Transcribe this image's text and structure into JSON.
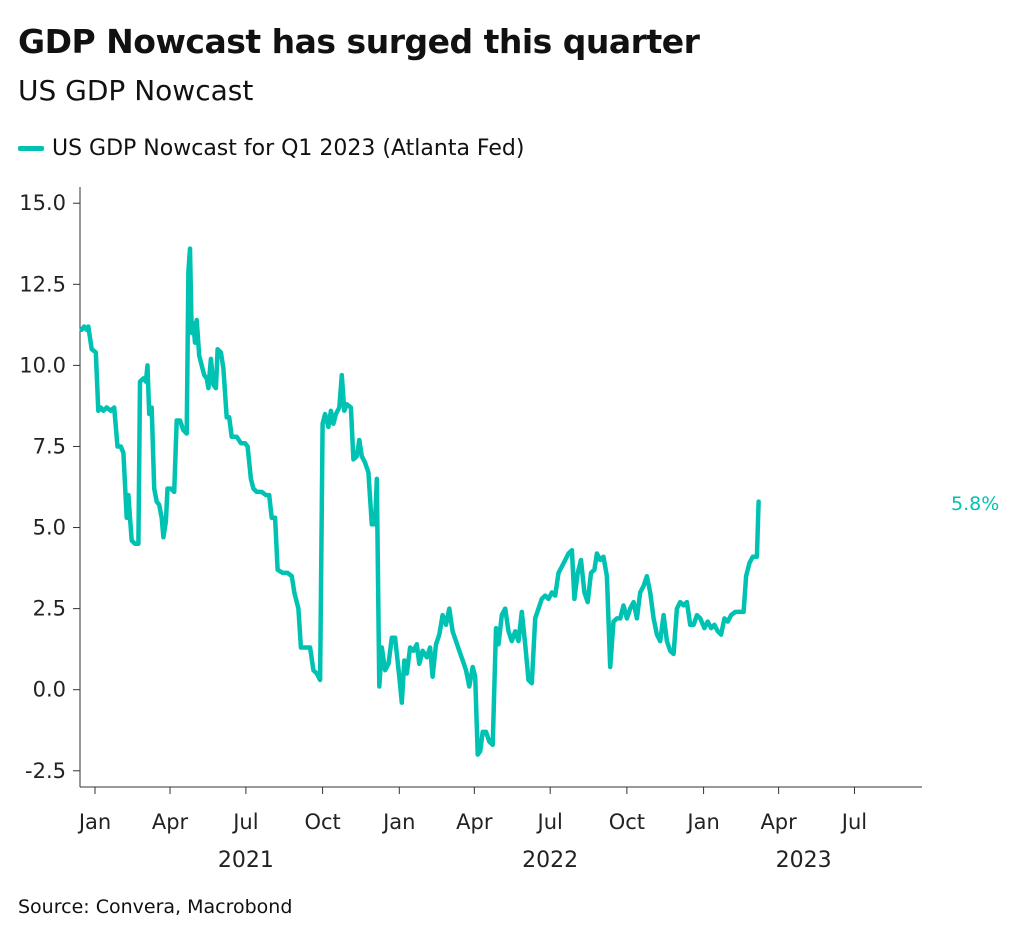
{
  "chart_data": {
    "type": "line",
    "title": "GDP Nowcast has surged this quarter",
    "subtitle": "US GDP Nowcast",
    "xlabel": "",
    "ylabel": "",
    "ylim": [
      -3,
      15.5
    ],
    "xlim": [
      "2020-12-14",
      "2023-09-20"
    ],
    "yticks": [
      "-2.5",
      "0.0",
      "2.5",
      "5.0",
      "7.5",
      "10.0",
      "12.5",
      "15.0"
    ],
    "month_ticks": [
      {
        "date": "2021-01-01",
        "label": "Jan"
      },
      {
        "date": "2021-04-01",
        "label": "Apr"
      },
      {
        "date": "2021-07-01",
        "label": "Jul"
      },
      {
        "date": "2021-10-01",
        "label": "Oct"
      },
      {
        "date": "2022-01-01",
        "label": "Jan"
      },
      {
        "date": "2022-04-01",
        "label": "Apr"
      },
      {
        "date": "2022-07-01",
        "label": "Jul"
      },
      {
        "date": "2022-10-01",
        "label": "Oct"
      },
      {
        "date": "2023-01-01",
        "label": "Jan"
      },
      {
        "date": "2023-04-01",
        "label": "Apr"
      },
      {
        "date": "2023-07-01",
        "label": "Jul"
      }
    ],
    "year_labels": [
      {
        "date": "2021-07-01",
        "label": "2021"
      },
      {
        "date": "2022-07-01",
        "label": "2022"
      },
      {
        "date": "2023-05-01",
        "label": "2023"
      }
    ],
    "grid": false,
    "legend_position": "top-left",
    "end_label": "5.8%",
    "series": [
      {
        "name": "US GDP Nowcast for Q1 2023 (Atlanta Fed)",
        "color": "#00C2B2",
        "points": [
          [
            "2020-12-16",
            11.1
          ],
          [
            "2020-12-19",
            11.2
          ],
          [
            "2020-12-22",
            11.1
          ],
          [
            "2020-12-24",
            11.2
          ],
          [
            "2020-12-28",
            10.5
          ],
          [
            "2021-01-02",
            10.4
          ],
          [
            "2021-01-05",
            8.6
          ],
          [
            "2021-01-08",
            8.7
          ],
          [
            "2021-01-11",
            8.6
          ],
          [
            "2021-01-15",
            8.7
          ],
          [
            "2021-01-20",
            8.6
          ],
          [
            "2021-01-24",
            8.7
          ],
          [
            "2021-01-28",
            7.5
          ],
          [
            "2021-02-01",
            7.5
          ],
          [
            "2021-02-04",
            7.3
          ],
          [
            "2021-02-08",
            5.3
          ],
          [
            "2021-02-10",
            6.0
          ],
          [
            "2021-02-12",
            5.3
          ],
          [
            "2021-02-14",
            4.6
          ],
          [
            "2021-02-18",
            4.5
          ],
          [
            "2021-02-22",
            4.5
          ],
          [
            "2021-02-24",
            9.5
          ],
          [
            "2021-02-28",
            9.6
          ],
          [
            "2021-03-03",
            9.5
          ],
          [
            "2021-03-05",
            10.0
          ],
          [
            "2021-03-07",
            8.5
          ],
          [
            "2021-03-10",
            8.7
          ],
          [
            "2021-03-13",
            6.2
          ],
          [
            "2021-03-16",
            5.8
          ],
          [
            "2021-03-19",
            5.7
          ],
          [
            "2021-03-22",
            5.3
          ],
          [
            "2021-03-24",
            4.7
          ],
          [
            "2021-03-27",
            5.2
          ],
          [
            "2021-03-29",
            6.2
          ],
          [
            "2021-04-02",
            6.2
          ],
          [
            "2021-04-06",
            6.1
          ],
          [
            "2021-04-09",
            8.3
          ],
          [
            "2021-04-13",
            8.3
          ],
          [
            "2021-04-17",
            8.0
          ],
          [
            "2021-04-21",
            7.9
          ],
          [
            "2021-04-23",
            12.9
          ],
          [
            "2021-04-25",
            13.6
          ],
          [
            "2021-04-27",
            11.0
          ],
          [
            "2021-04-29",
            11.3
          ],
          [
            "2021-05-01",
            10.7
          ],
          [
            "2021-05-03",
            11.4
          ],
          [
            "2021-05-06",
            10.3
          ],
          [
            "2021-05-09",
            10.0
          ],
          [
            "2021-05-12",
            9.7
          ],
          [
            "2021-05-15",
            9.6
          ],
          [
            "2021-05-17",
            9.3
          ],
          [
            "2021-05-20",
            10.2
          ],
          [
            "2021-05-23",
            9.4
          ],
          [
            "2021-05-26",
            9.3
          ],
          [
            "2021-05-28",
            10.5
          ],
          [
            "2021-06-01",
            10.4
          ],
          [
            "2021-06-04",
            9.9
          ],
          [
            "2021-06-08",
            8.4
          ],
          [
            "2021-06-11",
            8.4
          ],
          [
            "2021-06-14",
            7.8
          ],
          [
            "2021-06-20",
            7.8
          ],
          [
            "2021-06-25",
            7.6
          ],
          [
            "2021-06-30",
            7.6
          ],
          [
            "2021-07-03",
            7.5
          ],
          [
            "2021-07-07",
            6.5
          ],
          [
            "2021-07-10",
            6.2
          ],
          [
            "2021-07-14",
            6.1
          ],
          [
            "2021-07-20",
            6.1
          ],
          [
            "2021-07-25",
            6.0
          ],
          [
            "2021-07-29",
            6.0
          ],
          [
            "2021-08-01",
            5.3
          ],
          [
            "2021-08-05",
            5.3
          ],
          [
            "2021-08-08",
            3.7
          ],
          [
            "2021-08-14",
            3.6
          ],
          [
            "2021-08-20",
            3.6
          ],
          [
            "2021-08-25",
            3.5
          ],
          [
            "2021-08-28",
            3.0
          ],
          [
            "2021-09-02",
            2.5
          ],
          [
            "2021-09-05",
            1.3
          ],
          [
            "2021-09-10",
            1.3
          ],
          [
            "2021-09-16",
            1.3
          ],
          [
            "2021-09-20",
            0.6
          ],
          [
            "2021-09-24",
            0.5
          ],
          [
            "2021-09-28",
            0.3
          ],
          [
            "2021-10-01",
            8.2
          ],
          [
            "2021-10-04",
            8.5
          ],
          [
            "2021-10-08",
            8.1
          ],
          [
            "2021-10-11",
            8.6
          ],
          [
            "2021-10-14",
            8.2
          ],
          [
            "2021-10-17",
            8.5
          ],
          [
            "2021-10-21",
            8.7
          ],
          [
            "2021-10-24",
            9.7
          ],
          [
            "2021-10-27",
            8.6
          ],
          [
            "2021-10-30",
            8.8
          ],
          [
            "2021-11-04",
            8.7
          ],
          [
            "2021-11-07",
            7.1
          ],
          [
            "2021-11-11",
            7.2
          ],
          [
            "2021-11-14",
            7.7
          ],
          [
            "2021-11-17",
            7.2
          ],
          [
            "2021-11-21",
            7.0
          ],
          [
            "2021-11-25",
            6.7
          ],
          [
            "2021-11-29",
            5.1
          ],
          [
            "2021-12-03",
            5.1
          ],
          [
            "2021-12-05",
            6.5
          ],
          [
            "2021-12-08",
            0.1
          ],
          [
            "2021-12-11",
            1.3
          ],
          [
            "2021-12-15",
            0.6
          ],
          [
            "2021-12-19",
            0.8
          ],
          [
            "2021-12-23",
            1.6
          ],
          [
            "2021-12-27",
            1.6
          ],
          [
            "2022-01-01",
            0.4
          ],
          [
            "2022-01-04",
            -0.4
          ],
          [
            "2022-01-07",
            0.9
          ],
          [
            "2022-01-10",
            0.5
          ],
          [
            "2022-01-14",
            1.3
          ],
          [
            "2022-01-18",
            1.2
          ],
          [
            "2022-01-22",
            1.4
          ],
          [
            "2022-01-25",
            0.8
          ],
          [
            "2022-01-29",
            1.2
          ],
          [
            "2022-02-03",
            1.0
          ],
          [
            "2022-02-07",
            1.3
          ],
          [
            "2022-02-10",
            0.4
          ],
          [
            "2022-02-14",
            1.4
          ],
          [
            "2022-02-18",
            1.7
          ],
          [
            "2022-02-22",
            2.3
          ],
          [
            "2022-02-26",
            2.0
          ],
          [
            "2022-03-02",
            2.5
          ],
          [
            "2022-03-06",
            1.8
          ],
          [
            "2022-03-10",
            1.5
          ],
          [
            "2022-03-14",
            1.2
          ],
          [
            "2022-03-18",
            0.9
          ],
          [
            "2022-03-22",
            0.6
          ],
          [
            "2022-03-26",
            0.1
          ],
          [
            "2022-03-30",
            0.7
          ],
          [
            "2022-04-02",
            0.4
          ],
          [
            "2022-04-05",
            -2.0
          ],
          [
            "2022-04-08",
            -1.9
          ],
          [
            "2022-04-11",
            -1.3
          ],
          [
            "2022-04-15",
            -1.3
          ],
          [
            "2022-04-19",
            -1.6
          ],
          [
            "2022-04-23",
            -1.7
          ],
          [
            "2022-04-27",
            1.9
          ],
          [
            "2022-04-30",
            1.4
          ],
          [
            "2022-05-04",
            2.3
          ],
          [
            "2022-05-08",
            2.5
          ],
          [
            "2022-05-12",
            1.8
          ],
          [
            "2022-05-16",
            1.5
          ],
          [
            "2022-05-20",
            1.8
          ],
          [
            "2022-05-24",
            1.5
          ],
          [
            "2022-05-28",
            2.4
          ],
          [
            "2022-06-01",
            1.4
          ],
          [
            "2022-06-05",
            0.3
          ],
          [
            "2022-06-09",
            0.2
          ],
          [
            "2022-06-13",
            2.2
          ],
          [
            "2022-06-17",
            2.5
          ],
          [
            "2022-06-21",
            2.8
          ],
          [
            "2022-06-25",
            2.9
          ],
          [
            "2022-06-29",
            2.8
          ],
          [
            "2022-07-03",
            3.0
          ],
          [
            "2022-07-07",
            2.9
          ],
          [
            "2022-07-11",
            3.6
          ],
          [
            "2022-07-15",
            3.8
          ],
          [
            "2022-07-19",
            4.0
          ],
          [
            "2022-07-23",
            4.2
          ],
          [
            "2022-07-27",
            4.3
          ],
          [
            "2022-07-30",
            2.8
          ],
          [
            "2022-08-03",
            3.6
          ],
          [
            "2022-08-07",
            4.0
          ],
          [
            "2022-08-11",
            3.0
          ],
          [
            "2022-08-15",
            2.7
          ],
          [
            "2022-08-19",
            3.6
          ],
          [
            "2022-08-23",
            3.7
          ],
          [
            "2022-08-26",
            4.2
          ],
          [
            "2022-08-30",
            4.0
          ],
          [
            "2022-09-03",
            4.1
          ],
          [
            "2022-09-07",
            3.5
          ],
          [
            "2022-09-11",
            0.7
          ],
          [
            "2022-09-15",
            2.1
          ],
          [
            "2022-09-19",
            2.2
          ],
          [
            "2022-09-23",
            2.2
          ],
          [
            "2022-09-27",
            2.6
          ],
          [
            "2022-10-01",
            2.2
          ],
          [
            "2022-10-05",
            2.5
          ],
          [
            "2022-10-09",
            2.7
          ],
          [
            "2022-10-13",
            2.2
          ],
          [
            "2022-10-17",
            3.0
          ],
          [
            "2022-10-21",
            3.2
          ],
          [
            "2022-10-25",
            3.5
          ],
          [
            "2022-10-29",
            3.0
          ],
          [
            "2022-11-02",
            2.2
          ],
          [
            "2022-11-06",
            1.7
          ],
          [
            "2022-11-10",
            1.5
          ],
          [
            "2022-11-14",
            2.3
          ],
          [
            "2022-11-18",
            1.5
          ],
          [
            "2022-11-22",
            1.2
          ],
          [
            "2022-11-26",
            1.1
          ],
          [
            "2022-11-30",
            2.5
          ],
          [
            "2022-12-04",
            2.7
          ],
          [
            "2022-12-08",
            2.6
          ],
          [
            "2022-12-12",
            2.7
          ],
          [
            "2022-12-16",
            2.0
          ],
          [
            "2022-12-20",
            2.0
          ],
          [
            "2022-12-24",
            2.3
          ],
          [
            "2022-12-28",
            2.2
          ],
          [
            "2023-01-02",
            1.9
          ],
          [
            "2023-01-06",
            2.1
          ],
          [
            "2023-01-10",
            1.9
          ],
          [
            "2023-01-14",
            2.0
          ],
          [
            "2023-01-18",
            1.8
          ],
          [
            "2023-01-22",
            1.7
          ],
          [
            "2023-01-26",
            2.2
          ],
          [
            "2023-01-30",
            2.1
          ],
          [
            "2023-02-03",
            2.3
          ],
          [
            "2023-02-08",
            2.4
          ],
          [
            "2023-02-14",
            2.4
          ],
          [
            "2023-02-18",
            2.4
          ],
          [
            "2023-02-21",
            3.5
          ],
          [
            "2023-02-25",
            3.9
          ],
          [
            "2023-03-01",
            4.1
          ],
          [
            "2023-03-06",
            4.1
          ],
          [
            "2023-03-08",
            5.8
          ]
        ]
      }
    ]
  },
  "source": "Source: Convera, Macrobond"
}
